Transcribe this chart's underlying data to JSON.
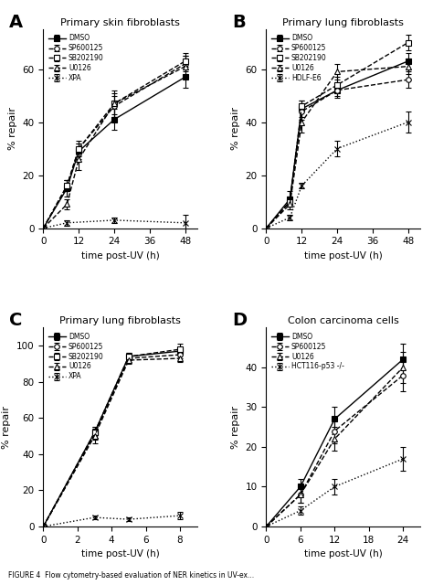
{
  "A": {
    "title": "Primary skin fibroblasts",
    "xlabel": "time post-UV (h)",
    "ylabel": "% repair",
    "xlim": [
      0,
      52
    ],
    "ylim": [
      0,
      75
    ],
    "xticks": [
      0,
      12,
      24,
      36,
      48
    ],
    "yticks": [
      0,
      20,
      40,
      60
    ],
    "series": [
      {
        "label": "DMSO",
        "x": [
          0,
          8,
          12,
          24,
          48
        ],
        "y": [
          0,
          15,
          29,
          41,
          57
        ],
        "yerr": [
          0,
          3,
          3,
          4,
          4
        ],
        "linestyle": "-",
        "marker": "s",
        "markersize": 4,
        "color": "black",
        "markerfacecolor": "black"
      },
      {
        "label": "SP600125",
        "x": [
          0,
          8,
          12,
          24,
          48
        ],
        "y": [
          0,
          16,
          30,
          46,
          62
        ],
        "yerr": [
          0,
          2,
          3,
          4,
          3
        ],
        "linestyle": "--",
        "marker": "o",
        "markersize": 4,
        "color": "black",
        "markerfacecolor": "white"
      },
      {
        "label": "SB202190",
        "x": [
          0,
          8,
          12,
          24,
          48
        ],
        "y": [
          0,
          16,
          30,
          47,
          63
        ],
        "yerr": [
          0,
          2,
          2,
          4,
          3
        ],
        "linestyle": "--",
        "marker": "s",
        "markersize": 4,
        "color": "black",
        "markerfacecolor": "white"
      },
      {
        "label": "U0126",
        "x": [
          0,
          8,
          12,
          24,
          48
        ],
        "y": [
          0,
          9,
          26,
          47,
          61
        ],
        "yerr": [
          0,
          2,
          4,
          5,
          4
        ],
        "linestyle": "--",
        "marker": "^",
        "markersize": 4,
        "color": "black",
        "markerfacecolor": "white"
      },
      {
        "label": "XPA",
        "x": [
          0,
          8,
          24,
          48
        ],
        "y": [
          0,
          2,
          3,
          2
        ],
        "yerr": [
          0,
          1,
          1,
          3
        ],
        "linestyle": ":",
        "marker": "x",
        "markersize": 4,
        "color": "black",
        "markerfacecolor": "black"
      }
    ]
  },
  "B": {
    "title": "Primary lung fibroblasts",
    "xlabel": "time post-UV (h)",
    "ylabel": "% repair",
    "xlim": [
      0,
      52
    ],
    "ylim": [
      0,
      75
    ],
    "xticks": [
      0,
      12,
      24,
      36,
      48
    ],
    "yticks": [
      0,
      20,
      40,
      60
    ],
    "series": [
      {
        "label": "DMSO",
        "x": [
          0,
          8,
          12,
          24,
          48
        ],
        "y": [
          0,
          11,
          45,
          52,
          63
        ],
        "yerr": [
          0,
          3,
          3,
          3,
          3
        ],
        "linestyle": "-",
        "marker": "s",
        "markersize": 4,
        "color": "black",
        "markerfacecolor": "black"
      },
      {
        "label": "SP600125",
        "x": [
          0,
          8,
          12,
          24,
          48
        ],
        "y": [
          0,
          10,
          44,
          52,
          56
        ],
        "yerr": [
          0,
          2,
          3,
          2,
          3
        ],
        "linestyle": "--",
        "marker": "o",
        "markersize": 4,
        "color": "black",
        "markerfacecolor": "white"
      },
      {
        "label": "SB202190",
        "x": [
          0,
          8,
          12,
          24,
          48
        ],
        "y": [
          0,
          10,
          46,
          54,
          70
        ],
        "yerr": [
          0,
          2,
          2,
          3,
          3
        ],
        "linestyle": "--",
        "marker": "s",
        "markersize": 4,
        "color": "black",
        "markerfacecolor": "white"
      },
      {
        "label": "U0126",
        "x": [
          0,
          8,
          12,
          24,
          48
        ],
        "y": [
          0,
          9,
          40,
          59,
          61
        ],
        "yerr": [
          0,
          2,
          4,
          3,
          3
        ],
        "linestyle": "--",
        "marker": "^",
        "markersize": 4,
        "color": "black",
        "markerfacecolor": "white"
      },
      {
        "label": "HDLF-E6",
        "x": [
          0,
          8,
          12,
          24,
          48
        ],
        "y": [
          0,
          4,
          16,
          30,
          40
        ],
        "yerr": [
          0,
          1,
          1,
          3,
          4
        ],
        "linestyle": ":",
        "marker": "x",
        "markersize": 4,
        "color": "black",
        "markerfacecolor": "black"
      }
    ]
  },
  "C": {
    "title": "Primary lung fibroblasts",
    "xlabel": "time post-UV (h)",
    "ylabel": "% repair",
    "xlim": [
      0,
      9
    ],
    "ylim": [
      0,
      110
    ],
    "xticks": [
      0,
      2,
      4,
      6,
      8
    ],
    "yticks": [
      0,
      20,
      40,
      60,
      80,
      100
    ],
    "series": [
      {
        "label": "DMSO",
        "x": [
          0,
          3,
          5,
          8
        ],
        "y": [
          0,
          52,
          94,
          97
        ],
        "yerr": [
          0,
          3,
          2,
          2
        ],
        "linestyle": "-",
        "marker": "s",
        "markersize": 4,
        "color": "black",
        "markerfacecolor": "black"
      },
      {
        "label": "SP600125",
        "x": [
          0,
          3,
          5,
          8
        ],
        "y": [
          0,
          51,
          93,
          95
        ],
        "yerr": [
          0,
          3,
          2,
          2
        ],
        "linestyle": "--",
        "marker": "o",
        "markersize": 4,
        "color": "black",
        "markerfacecolor": "white"
      },
      {
        "label": "SB202190",
        "x": [
          0,
          3,
          5,
          8
        ],
        "y": [
          0,
          52,
          94,
          98
        ],
        "yerr": [
          0,
          3,
          2,
          3
        ],
        "linestyle": "--",
        "marker": "s",
        "markersize": 4,
        "color": "black",
        "markerfacecolor": "white"
      },
      {
        "label": "U0126",
        "x": [
          0,
          3,
          5,
          8
        ],
        "y": [
          0,
          50,
          92,
          93
        ],
        "yerr": [
          0,
          4,
          2,
          2
        ],
        "linestyle": "--",
        "marker": "^",
        "markersize": 4,
        "color": "black",
        "markerfacecolor": "white"
      },
      {
        "label": "XPA",
        "x": [
          0,
          3,
          5,
          8
        ],
        "y": [
          0,
          5,
          4,
          6
        ],
        "yerr": [
          0,
          1,
          1,
          2
        ],
        "linestyle": ":",
        "marker": "x",
        "markersize": 4,
        "color": "black",
        "markerfacecolor": "black"
      }
    ]
  },
  "D": {
    "title": "Colon carcinoma cells",
    "xlabel": "time post-UV (h)",
    "ylabel": "% repair",
    "xlim": [
      0,
      27
    ],
    "ylim": [
      0,
      50
    ],
    "xticks": [
      0,
      6,
      12,
      18,
      24
    ],
    "yticks": [
      0,
      10,
      20,
      30,
      40
    ],
    "series": [
      {
        "label": "DMSO",
        "x": [
          0,
          6,
          12,
          24
        ],
        "y": [
          0,
          10,
          27,
          42
        ],
        "yerr": [
          0,
          2,
          3,
          4
        ],
        "linestyle": "-",
        "marker": "s",
        "markersize": 4,
        "color": "black",
        "markerfacecolor": "black"
      },
      {
        "label": "SP600125",
        "x": [
          0,
          6,
          12,
          24
        ],
        "y": [
          0,
          8,
          24,
          38
        ],
        "yerr": [
          0,
          2,
          3,
          4
        ],
        "linestyle": "--",
        "marker": "o",
        "markersize": 4,
        "color": "black",
        "markerfacecolor": "white"
      },
      {
        "label": "U0126",
        "x": [
          0,
          6,
          12,
          24
        ],
        "y": [
          0,
          8,
          22,
          40
        ],
        "yerr": [
          0,
          2,
          3,
          4
        ],
        "linestyle": "--",
        "marker": "^",
        "markersize": 4,
        "color": "black",
        "markerfacecolor": "white"
      },
      {
        "label": "HCT116-p53 -/-",
        "x": [
          0,
          6,
          12,
          24
        ],
        "y": [
          0,
          4,
          10,
          17
        ],
        "yerr": [
          0,
          1,
          2,
          3
        ],
        "linestyle": ":",
        "marker": "x",
        "markersize": 4,
        "color": "black",
        "markerfacecolor": "black"
      }
    ]
  },
  "caption": "FIGURE 4  Flow cytometry-based evaluation of NER kinetics in UV-ex..."
}
